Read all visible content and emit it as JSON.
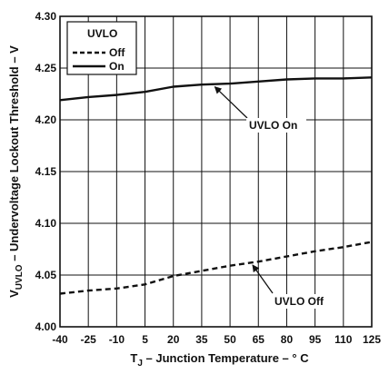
{
  "chart_data": {
    "type": "line",
    "xlabel_main": "T",
    "xlabel_sub": "J",
    "xlabel_rest": " – Junction Temperature – ° C",
    "ylabel_main": "V",
    "ylabel_sub": "UVLO",
    "ylabel_rest": " – Undervoltage Lockout Threshold – V",
    "x_ticks": [
      -40,
      -25,
      -10,
      5,
      20,
      35,
      50,
      65,
      80,
      95,
      110,
      125
    ],
    "y_ticks": [
      "4.00",
      "4.05",
      "4.10",
      "4.15",
      "4.20",
      "4.25",
      "4.30"
    ],
    "xlim": [
      -40,
      125
    ],
    "ylim": [
      4.0,
      4.3
    ],
    "grid": true,
    "legend": {
      "title": "UVLO",
      "placement": "top-left"
    },
    "series": [
      {
        "name": "Off",
        "style": "dashed",
        "x": [
          -40,
          -25,
          -10,
          5,
          20,
          35,
          50,
          65,
          80,
          95,
          110,
          125
        ],
        "y": [
          4.032,
          4.035,
          4.037,
          4.041,
          4.049,
          4.054,
          4.059,
          4.063,
          4.068,
          4.073,
          4.077,
          4.082
        ]
      },
      {
        "name": "On",
        "style": "solid",
        "x": [
          -40,
          -25,
          -10,
          5,
          20,
          35,
          50,
          65,
          80,
          95,
          110,
          125
        ],
        "y": [
          4.219,
          4.222,
          4.224,
          4.227,
          4.232,
          4.234,
          4.235,
          4.237,
          4.239,
          4.24,
          4.24,
          4.241
        ]
      }
    ],
    "annotations": [
      {
        "text": "UVLO On",
        "target_series": "On",
        "target_x": 42
      },
      {
        "text": "UVLO Off",
        "target_series": "Off",
        "target_x": 62
      }
    ]
  }
}
